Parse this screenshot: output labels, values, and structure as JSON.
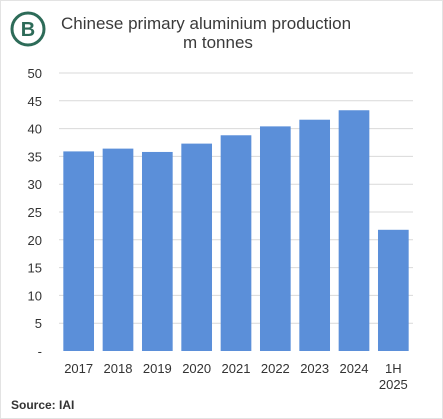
{
  "header": {
    "logo_letter": "B",
    "logo_color": "#2d6b58"
  },
  "footer": {
    "source": "Source: IAI"
  },
  "chart_data": {
    "type": "bar",
    "title": "Chinese primary aluminium production",
    "subtitle": "m tonnes",
    "xlabel": "",
    "ylabel": "",
    "categories": [
      "2017",
      "2018",
      "2019",
      "2020",
      "2021",
      "2022",
      "2023",
      "2024",
      "1H 2025"
    ],
    "values": [
      35.9,
      36.4,
      35.8,
      37.3,
      38.8,
      40.4,
      41.6,
      43.3,
      21.8
    ],
    "ylim": [
      0,
      50
    ],
    "yticks": [
      "-",
      "5",
      "10",
      "15",
      "20",
      "25",
      "30",
      "35",
      "40",
      "45",
      "50"
    ],
    "grid": true,
    "legend": "none",
    "bar_color": "#5b8fd9",
    "grid_color": "#d9d9d9"
  }
}
